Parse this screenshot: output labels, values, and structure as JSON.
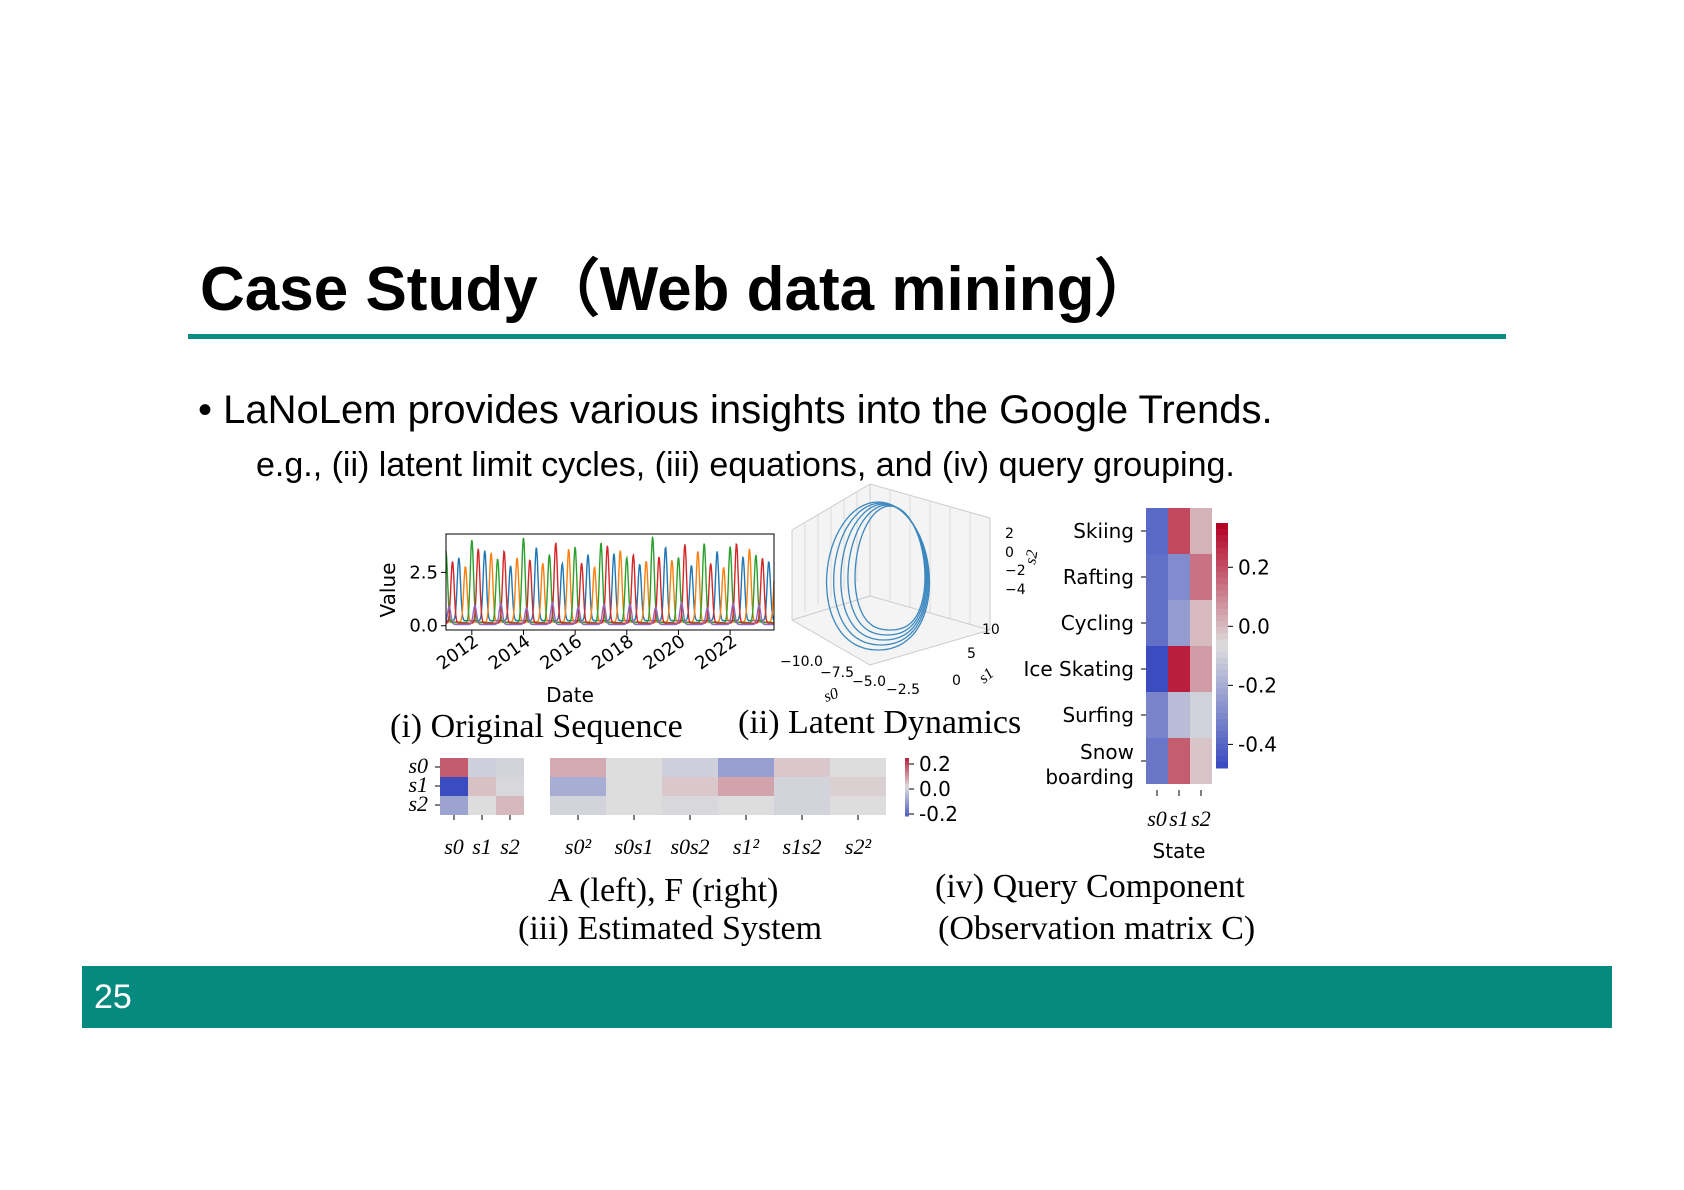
{
  "slide": {
    "title": "Case Study（Web data mining）",
    "bullet": "• LaNoLem provides various insights into the Google Trends.",
    "subline": "e.g., (ii) latent limit cycles, (iii) equations, and (iv) query grouping.",
    "page_number": "25",
    "accent_color": "#0a8c80"
  },
  "captions": {
    "i": "(i) Original Sequence",
    "ii": "(ii) Latent Dynamics",
    "iii_a": "A (left),  F (right)",
    "iii_b": "(iii) Estimated System",
    "iv_a": "(iv)  Query Component",
    "iv_b": "(Observation matrix C)"
  },
  "chart_data": [
    {
      "id": "original-sequence",
      "type": "line",
      "xlabel": "Date",
      "ylabel": "Value",
      "x_ticks": [
        "2012",
        "2014",
        "2016",
        "2018",
        "2020",
        "2022"
      ],
      "y_ticks": [
        "0.0",
        "2.5"
      ],
      "xlim": [
        2011.0,
        2023.7
      ],
      "ylim": [
        -0.2,
        4.3
      ],
      "series": [
        {
          "color": "#1f77b4",
          "phase": 0.0,
          "peak": 3.0,
          "base": 0.8
        },
        {
          "color": "#ff7f0e",
          "phase": 0.25,
          "peak": 3.0,
          "base": 0.6
        },
        {
          "color": "#2ca02c",
          "phase": 0.5,
          "peak": 3.5,
          "base": 0.5
        },
        {
          "color": "#d62728",
          "phase": 0.75,
          "peak": 3.3,
          "base": 0.4
        },
        {
          "color": "#9467bd",
          "phase": 0.62,
          "peak": 0.9,
          "base": 0.2
        }
      ]
    },
    {
      "id": "latent-dynamics",
      "type": "line3d",
      "axes": {
        "s0_ticks": [
          "−10.0",
          "−7.5",
          "−5.0",
          "−2.5"
        ],
        "s1_ticks": [
          "0",
          "5",
          "10"
        ],
        "s2_ticks": [
          "2",
          "0",
          "−2",
          "−4"
        ],
        "s0_label": "s0",
        "s1_label": "s1",
        "s2_label": "s2"
      },
      "color": "#3b88bf"
    },
    {
      "id": "matrix-A",
      "type": "heatmap",
      "rows": [
        "s0",
        "s1",
        "s2"
      ],
      "cols": [
        "s0",
        "s1",
        "s2"
      ],
      "values": [
        [
          0.18,
          -0.03,
          -0.02
        ],
        [
          -0.35,
          0.04,
          -0.01
        ],
        [
          -0.12,
          0.0,
          0.05
        ]
      ]
    },
    {
      "id": "matrix-F",
      "type": "heatmap",
      "cols": [
        "s0²",
        "s0s1",
        "s0s2",
        "s1²",
        "s1s2",
        "s2²"
      ],
      "values": [
        [
          0.07,
          0.0,
          -0.03,
          -0.13,
          0.03,
          0.0
        ],
        [
          -0.1,
          0.0,
          0.03,
          0.08,
          -0.02,
          0.02
        ],
        [
          -0.02,
          0.0,
          -0.01,
          0.0,
          -0.02,
          0.0
        ]
      ],
      "colorbar_ticks": [
        "0.2",
        "0.0",
        "-0.2"
      ]
    },
    {
      "id": "query-component",
      "type": "heatmap",
      "rows": [
        "Skiing",
        "Rafting",
        "Cycling",
        "Ice Skating",
        "Surfing",
        "Snow boarding"
      ],
      "cols": [
        "s0",
        "s1",
        "s2"
      ],
      "xlabel": "State",
      "values": [
        [
          -0.4,
          0.22,
          0.02
        ],
        [
          -0.38,
          -0.3,
          0.14
        ],
        [
          -0.38,
          -0.25,
          0.0
        ],
        [
          -0.48,
          0.3,
          0.06
        ],
        [
          -0.32,
          -0.16,
          -0.1
        ],
        [
          -0.36,
          0.18,
          -0.02
        ]
      ],
      "colorbar_ticks": [
        "0.2",
        "0.0",
        "-0.2",
        "-0.4"
      ],
      "vmin": -0.48,
      "vmax": 0.35
    }
  ]
}
